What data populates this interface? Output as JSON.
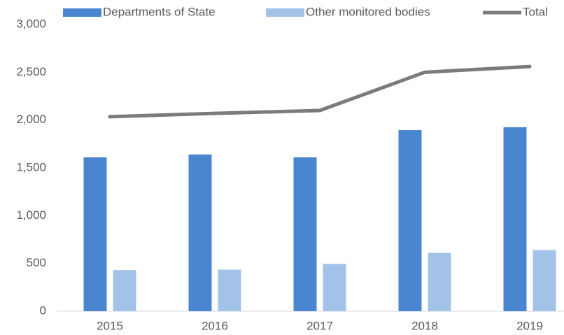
{
  "chart_data": {
    "type": "bar",
    "categories": [
      "2015",
      "2016",
      "2017",
      "2018",
      "2019"
    ],
    "series": [
      {
        "name": "Departments of State",
        "color": "#4a86cf",
        "values": [
          1610,
          1640,
          1610,
          1895,
          1925
        ]
      },
      {
        "name": "Other monitored bodies",
        "color": "#a3c2e8",
        "values": [
          430,
          435,
          495,
          610,
          640
        ]
      },
      {
        "name": "Total",
        "type": "line",
        "color": "#7b7b7b",
        "values": [
          2035,
          2070,
          2100,
          2500,
          2560
        ]
      }
    ],
    "ylim": [
      0,
      3000
    ],
    "yticks": [
      0,
      500,
      {
        "value": 1000,
        "label": "1,000"
      },
      {
        "value": 1500,
        "label": "1,500"
      },
      {
        "value": 2000,
        "label": "2,000"
      },
      {
        "value": 2500,
        "label": "2,500"
      },
      {
        "value": 3000,
        "label": "3,000"
      }
    ],
    "legend": "top"
  }
}
